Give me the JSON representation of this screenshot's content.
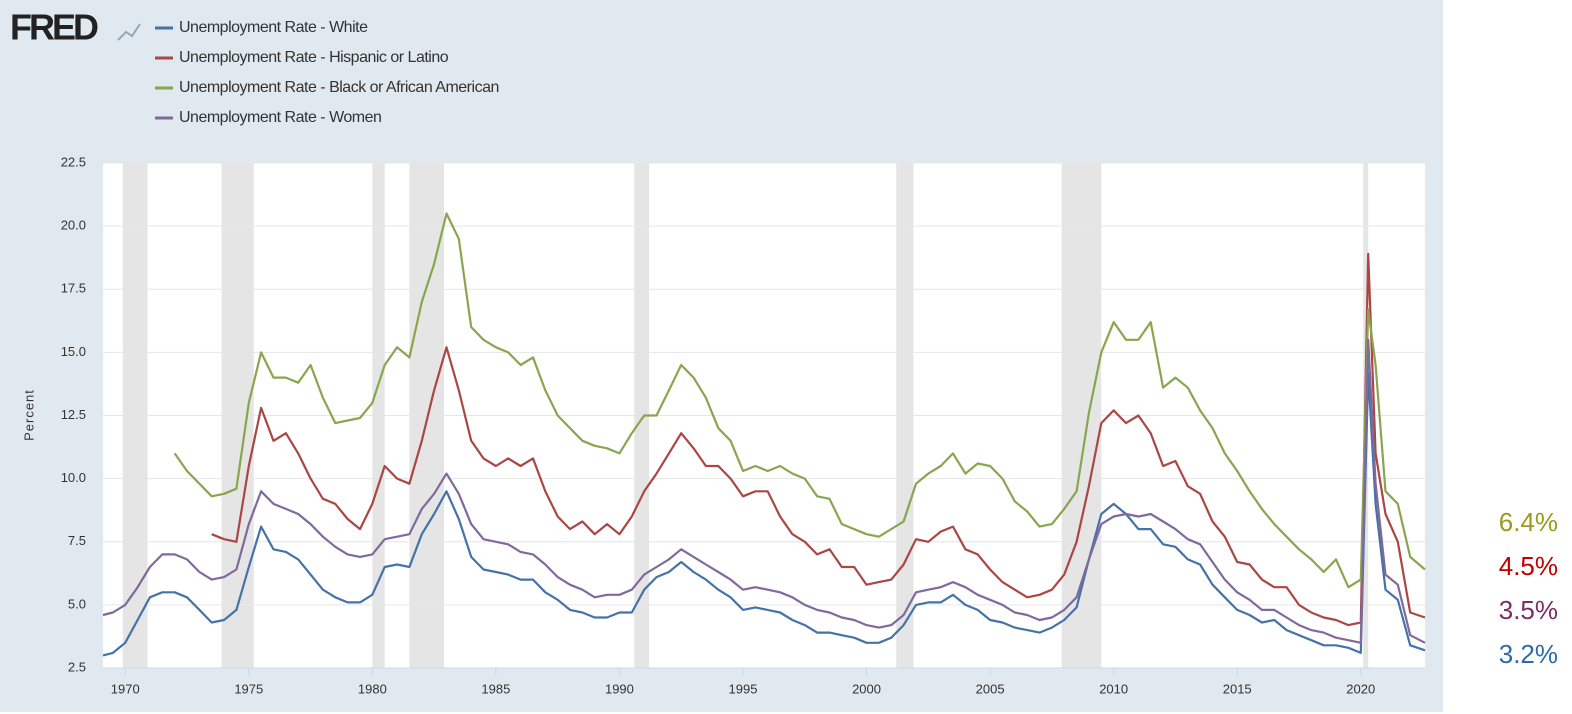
{
  "chart_data": {
    "type": "line",
    "logo": "FRED",
    "ylabel": "Percent",
    "x": [
      1969.1,
      1969.5,
      1970.0,
      1970.5,
      1971.0,
      1971.5,
      1972.0,
      1972.5,
      1973.0,
      1973.5,
      1974.0,
      1974.5,
      1975.0,
      1975.5,
      1976.0,
      1976.5,
      1977.0,
      1977.5,
      1978.0,
      1978.5,
      1979.0,
      1979.5,
      1980.0,
      1980.5,
      1981.0,
      1981.5,
      1982.0,
      1982.5,
      1983.0,
      1983.5,
      1984.0,
      1984.5,
      1985.0,
      1985.5,
      1986.0,
      1986.5,
      1987.0,
      1987.5,
      1988.0,
      1988.5,
      1989.0,
      1989.5,
      1990.0,
      1990.5,
      1991.0,
      1991.5,
      1992.0,
      1992.5,
      1993.0,
      1993.5,
      1994.0,
      1994.5,
      1995.0,
      1995.5,
      1996.0,
      1996.5,
      1997.0,
      1997.5,
      1998.0,
      1998.5,
      1999.0,
      1999.5,
      2000.0,
      2000.5,
      2001.0,
      2001.5,
      2002.0,
      2002.5,
      2003.0,
      2003.5,
      2004.0,
      2004.5,
      2005.0,
      2005.5,
      2006.0,
      2006.5,
      2007.0,
      2007.5,
      2008.0,
      2008.5,
      2009.0,
      2009.5,
      2010.0,
      2010.5,
      2011.0,
      2011.5,
      2012.0,
      2012.5,
      2013.0,
      2013.5,
      2014.0,
      2014.5,
      2015.0,
      2015.5,
      2016.0,
      2016.5,
      2017.0,
      2017.5,
      2018.0,
      2018.5,
      2019.0,
      2019.5,
      2020.0,
      2020.3,
      2020.6,
      2021.0,
      2021.5,
      2022.0,
      2022.6
    ],
    "series": [
      {
        "name": "Unemployment Rate - White",
        "color": "#4572a7",
        "values": [
          3.0,
          3.1,
          3.5,
          4.4,
          5.3,
          5.5,
          5.5,
          5.3,
          4.8,
          4.3,
          4.4,
          4.8,
          6.5,
          8.1,
          7.2,
          7.1,
          6.8,
          6.2,
          5.6,
          5.3,
          5.1,
          5.1,
          5.4,
          6.5,
          6.6,
          6.5,
          7.8,
          8.6,
          9.5,
          8.4,
          6.9,
          6.4,
          6.3,
          6.2,
          6.0,
          6.0,
          5.5,
          5.2,
          4.8,
          4.7,
          4.5,
          4.5,
          4.7,
          4.7,
          5.6,
          6.1,
          6.3,
          6.7,
          6.3,
          6.0,
          5.6,
          5.3,
          4.8,
          4.9,
          4.8,
          4.7,
          4.4,
          4.2,
          3.9,
          3.9,
          3.8,
          3.7,
          3.5,
          3.5,
          3.7,
          4.2,
          5.0,
          5.1,
          5.1,
          5.4,
          5.0,
          4.8,
          4.4,
          4.3,
          4.1,
          4.0,
          3.9,
          4.1,
          4.4,
          4.9,
          6.8,
          8.6,
          9.0,
          8.6,
          8.0,
          8.0,
          7.4,
          7.3,
          6.8,
          6.6,
          5.8,
          5.3,
          4.8,
          4.6,
          4.3,
          4.4,
          4.0,
          3.8,
          3.6,
          3.4,
          3.4,
          3.3,
          3.1,
          14.2,
          9.0,
          5.6,
          5.2,
          3.4,
          3.2
        ]
      },
      {
        "name": "Unemployment Rate - Hispanic or Latino",
        "color": "#aa4643",
        "values": [
          null,
          null,
          null,
          null,
          null,
          null,
          null,
          null,
          null,
          7.8,
          7.6,
          7.5,
          10.5,
          12.8,
          11.5,
          11.8,
          11.0,
          10.0,
          9.2,
          9.0,
          8.4,
          8.0,
          9.0,
          10.5,
          10.0,
          9.8,
          11.5,
          13.5,
          15.2,
          13.5,
          11.5,
          10.8,
          10.5,
          10.8,
          10.5,
          10.8,
          9.5,
          8.5,
          8.0,
          8.3,
          7.8,
          8.2,
          7.8,
          8.5,
          9.5,
          10.2,
          11.0,
          11.8,
          11.2,
          10.5,
          10.5,
          10.0,
          9.3,
          9.5,
          9.5,
          8.5,
          7.8,
          7.5,
          7.0,
          7.2,
          6.5,
          6.5,
          5.8,
          5.9,
          6.0,
          6.6,
          7.6,
          7.5,
          7.9,
          8.1,
          7.2,
          7.0,
          6.4,
          5.9,
          5.6,
          5.3,
          5.4,
          5.6,
          6.2,
          7.5,
          9.7,
          12.2,
          12.7,
          12.2,
          12.5,
          11.8,
          10.5,
          10.7,
          9.7,
          9.4,
          8.3,
          7.7,
          6.7,
          6.6,
          6.0,
          5.7,
          5.7,
          5.0,
          4.7,
          4.5,
          4.4,
          4.2,
          4.3,
          18.9,
          11.0,
          8.6,
          7.5,
          4.7,
          4.5
        ]
      },
      {
        "name": "Unemployment Rate - Black or African American",
        "color": "#89a54e",
        "values": [
          null,
          null,
          null,
          null,
          null,
          null,
          11.0,
          10.3,
          9.8,
          9.3,
          9.4,
          9.6,
          13.0,
          15.0,
          14.0,
          14.0,
          13.8,
          14.5,
          13.2,
          12.2,
          12.3,
          12.4,
          13.0,
          14.5,
          15.2,
          14.8,
          17.0,
          18.5,
          20.5,
          19.5,
          16.0,
          15.5,
          15.2,
          15.0,
          14.5,
          14.8,
          13.5,
          12.5,
          12.0,
          11.5,
          11.3,
          11.2,
          11.0,
          11.8,
          12.5,
          12.5,
          13.5,
          14.5,
          14.0,
          13.2,
          12.0,
          11.5,
          10.3,
          10.5,
          10.3,
          10.5,
          10.2,
          10.0,
          9.3,
          9.2,
          8.2,
          8.0,
          7.8,
          7.7,
          8.0,
          8.3,
          9.8,
          10.2,
          10.5,
          11.0,
          10.2,
          10.6,
          10.5,
          10.0,
          9.1,
          8.7,
          8.1,
          8.2,
          8.8,
          9.5,
          12.6,
          15.0,
          16.2,
          15.5,
          15.5,
          16.2,
          13.6,
          14.0,
          13.6,
          12.7,
          12.0,
          11.0,
          10.3,
          9.5,
          8.8,
          8.2,
          7.7,
          7.2,
          6.8,
          6.3,
          6.8,
          5.7,
          6.0,
          16.7,
          14.5,
          9.5,
          9.0,
          6.9,
          6.4
        ]
      },
      {
        "name": "Unemployment Rate - Women",
        "color": "#80699b",
        "values": [
          4.6,
          4.7,
          5.0,
          5.7,
          6.5,
          7.0,
          7.0,
          6.8,
          6.3,
          6.0,
          6.1,
          6.4,
          8.2,
          9.5,
          9.0,
          8.8,
          8.6,
          8.2,
          7.7,
          7.3,
          7.0,
          6.9,
          7.0,
          7.6,
          7.7,
          7.8,
          8.8,
          9.4,
          10.2,
          9.4,
          8.2,
          7.6,
          7.5,
          7.4,
          7.1,
          7.0,
          6.6,
          6.1,
          5.8,
          5.6,
          5.3,
          5.4,
          5.4,
          5.6,
          6.2,
          6.5,
          6.8,
          7.2,
          6.9,
          6.6,
          6.3,
          6.0,
          5.6,
          5.7,
          5.6,
          5.5,
          5.3,
          5.0,
          4.8,
          4.7,
          4.5,
          4.4,
          4.2,
          4.1,
          4.2,
          4.6,
          5.5,
          5.6,
          5.7,
          5.9,
          5.7,
          5.4,
          5.2,
          5.0,
          4.7,
          4.6,
          4.4,
          4.5,
          4.8,
          5.3,
          6.8,
          8.2,
          8.5,
          8.6,
          8.5,
          8.6,
          8.3,
          8.0,
          7.6,
          7.4,
          6.7,
          6.0,
          5.5,
          5.2,
          4.8,
          4.8,
          4.5,
          4.2,
          4.0,
          3.9,
          3.7,
          3.6,
          3.5,
          15.5,
          9.8,
          6.2,
          5.8,
          3.8,
          3.5
        ]
      }
    ],
    "recessions": [
      [
        1969.9,
        1970.9
      ],
      [
        1973.9,
        1975.2
      ],
      [
        1980.0,
        1980.5
      ],
      [
        1981.5,
        1982.9
      ],
      [
        1990.6,
        1991.2
      ],
      [
        2001.2,
        2001.9
      ],
      [
        2007.9,
        2009.5
      ],
      [
        2020.1,
        2020.3
      ]
    ],
    "xlim": [
      1969.1,
      2022.6
    ],
    "xticks": [
      1970,
      1975,
      1980,
      1985,
      1990,
      1995,
      2000,
      2005,
      2010,
      2015,
      2020
    ],
    "ylim": [
      2.5,
      22.5
    ],
    "yticks": [
      2.5,
      {
        "value": 5,
        "label": "5.0"
      },
      7.5,
      {
        "value": 10,
        "label": "10.0"
      },
      12.5,
      {
        "value": 15,
        "label": "15.0"
      },
      17.5,
      {
        "value": 20,
        "label": "20.0"
      },
      22.5
    ],
    "grid": true,
    "annotations": [
      {
        "text": "6.4%",
        "color": "#9a9a1e"
      },
      {
        "text": "4.5%",
        "color": "#c00000"
      },
      {
        "text": "3.5%",
        "color": "#7b2c6b"
      },
      {
        "text": "3.2%",
        "color": "#2e6aa8"
      }
    ]
  }
}
